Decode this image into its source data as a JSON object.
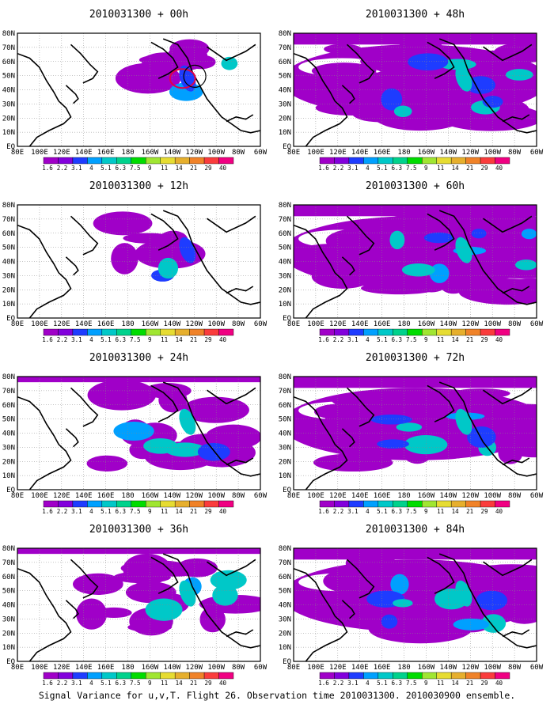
{
  "figure": {
    "caption": "Signal Variance for u,v,T. Flight 26. Observation time 2010031300. 2010030900 ensemble."
  },
  "colorbar": {
    "labels": [
      "1.6",
      "2.2",
      "3.1",
      "4",
      "5.1",
      "6.3",
      "7.5",
      "9",
      "11",
      "14",
      "21",
      "29",
      "40"
    ],
    "colors": [
      "#a000c8",
      "#8200dc",
      "#1e3cff",
      "#00a0ff",
      "#00c8c8",
      "#00d28c",
      "#00dc00",
      "#a0e632",
      "#e6dc32",
      "#e6af2d",
      "#f08228",
      "#fa3c3c",
      "#f00082"
    ]
  },
  "axes": {
    "lon_labels": [
      "80E",
      "100E",
      "120E",
      "140E",
      "160E",
      "180",
      "160W",
      "140W",
      "120W",
      "100W",
      "80W",
      "60W"
    ],
    "lat_labels": [
      "EQ",
      "10N",
      "20N",
      "30N",
      "40N",
      "50N",
      "60N",
      "70N",
      "80N"
    ],
    "lat_labels_display": [
      "EQ",
      "10N",
      "20N",
      "30N",
      "40N",
      "50N",
      "60N",
      "70N",
      "80N"
    ]
  },
  "panels": [
    {
      "title": "2010031300 + 00h",
      "coverage": "low"
    },
    {
      "title": "2010031300 + 48h",
      "coverage": "high"
    },
    {
      "title": "2010031300 + 12h",
      "coverage": "low"
    },
    {
      "title": "2010031300 + 60h",
      "coverage": "high"
    },
    {
      "title": "2010031300 + 24h",
      "coverage": "medium"
    },
    {
      "title": "2010031300 + 72h",
      "coverage": "high"
    },
    {
      "title": "2010031300 + 36h",
      "coverage": "medium"
    },
    {
      "title": "2010031300 + 84h",
      "coverage": "high"
    }
  ]
}
